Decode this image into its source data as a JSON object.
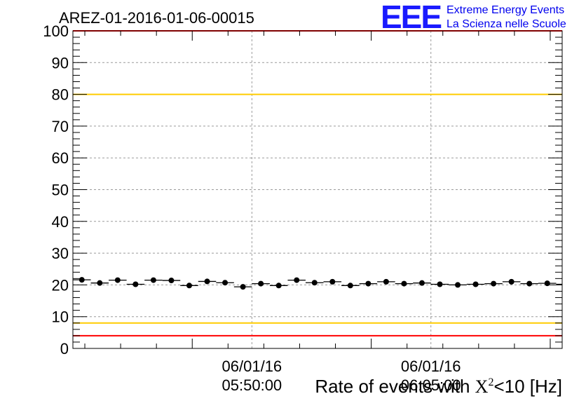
{
  "chart_data": {
    "type": "scatter",
    "title": "AREZ-01-2016-01-06-00015",
    "xlabel_pre": "Rate of events with ",
    "xlabel_math": "X",
    "xlabel_sup": "2",
    "xlabel_post": "<10 [Hz]",
    "ylim": [
      0,
      100
    ],
    "yticks": [
      "0",
      "10",
      "20",
      "30",
      "40",
      "50",
      "60",
      "70",
      "80",
      "90",
      "100"
    ],
    "ytick_values": [
      0,
      10,
      20,
      30,
      40,
      50,
      60,
      70,
      80,
      90,
      100
    ],
    "xlim": [
      "05:35:00",
      "06:16:00"
    ],
    "xticks": [
      {
        "time": "05:50:00",
        "date": "06/01/16",
        "label": "05:50:00"
      },
      {
        "time": "06:05:00",
        "date": "06/01/16",
        "label": "06:05:00"
      }
    ],
    "grid": true,
    "reference_lines": [
      {
        "y": 100,
        "color": "#ff0000"
      },
      {
        "y": 80,
        "color": "#ffcc00"
      },
      {
        "y": 8,
        "color": "#ffcc00"
      },
      {
        "y": 4,
        "color": "#ff0000"
      }
    ],
    "series": [
      {
        "x": [
          "05:35:45",
          "05:37:15",
          "05:38:45",
          "05:40:15",
          "05:41:45",
          "05:43:15",
          "05:44:45",
          "05:46:15",
          "05:47:45",
          "05:49:15",
          "05:50:45",
          "05:52:15",
          "05:53:45",
          "05:55:15",
          "05:56:45",
          "05:58:15",
          "05:59:45",
          "06:01:15",
          "06:02:45",
          "06:04:15",
          "06:05:45",
          "06:07:15",
          "06:08:45",
          "06:10:15",
          "06:11:45",
          "06:13:15",
          "06:14:45",
          "06:16:15"
        ],
        "values": [
          21.6,
          20.6,
          21.5,
          20.2,
          21.5,
          21.4,
          19.8,
          21.1,
          20.7,
          19.4,
          20.4,
          19.8,
          21.5,
          20.7,
          21.0,
          19.8,
          20.4,
          21.0,
          20.4,
          20.6,
          20.2,
          20.0,
          20.2,
          20.4,
          21.0,
          20.4,
          20.5,
          20.2
        ],
        "color": "#000000"
      }
    ]
  },
  "logo": {
    "mark": "EEE",
    "line1": "Extreme Energy Events",
    "line2": "La Scienza nelle Scuole"
  }
}
